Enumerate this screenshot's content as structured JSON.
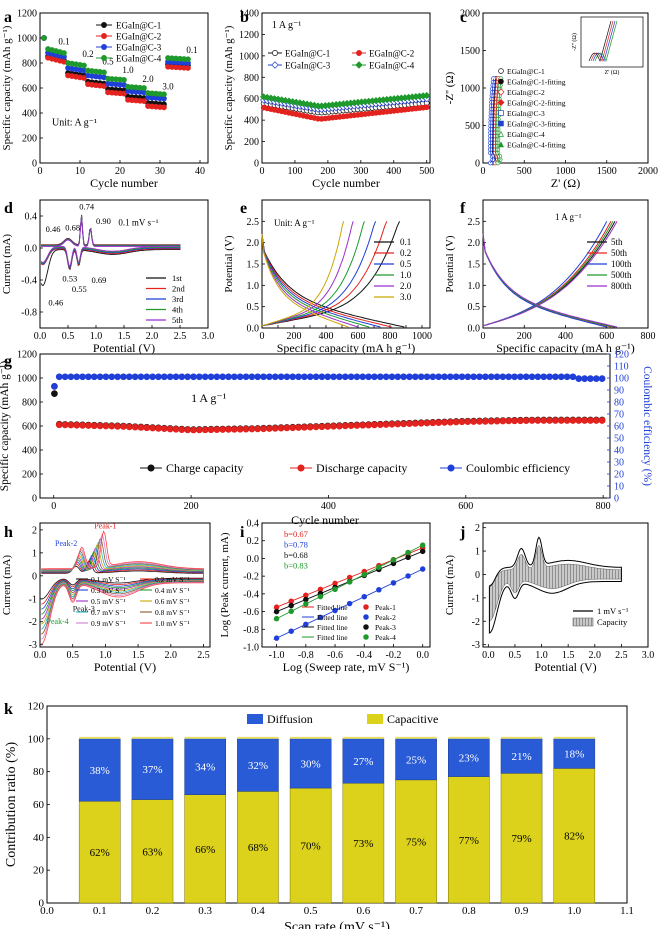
{
  "chart_data": [
    {
      "panel": "a",
      "type": "scatter",
      "xlabel": "Cycle number",
      "ylabel": "Specific capacity (mAh g⁻¹)",
      "xlim": [
        0,
        42
      ],
      "ylim": [
        0,
        1200
      ],
      "xticks": [
        0,
        10,
        20,
        30,
        40
      ],
      "yticks": [
        0,
        200,
        400,
        600,
        800,
        1000,
        1200
      ],
      "annotation": "Unit: A g⁻¹",
      "rate_labels": [
        {
          "text": "0.1",
          "x": 6,
          "y": 950
        },
        {
          "text": "0.2",
          "x": 12,
          "y": 850
        },
        {
          "text": "0.5",
          "x": 17,
          "y": 790
        },
        {
          "text": "1.0",
          "x": 22,
          "y": 720
        },
        {
          "text": "2.0",
          "x": 27,
          "y": 650
        },
        {
          "text": "3.0",
          "x": 32,
          "y": 590
        },
        {
          "text": "0.1",
          "x": 38,
          "y": 880
        }
      ],
      "series": [
        {
          "name": "EGaIn@C-1",
          "color": "#111111",
          "steps": [
            [
              860,
              820
            ],
            [
              720,
              700
            ],
            [
              650,
              635
            ],
            [
              590,
              580
            ],
            [
              530,
              520
            ],
            [
              480,
              470
            ],
            [
              790,
              780
            ]
          ]
        },
        {
          "name": "EGaIn@C-2",
          "color": "#e3231f",
          "steps": [
            [
              850,
              810
            ],
            [
              700,
              680
            ],
            [
              630,
              615
            ],
            [
              565,
              555
            ],
            [
              505,
              495
            ],
            [
              455,
              445
            ],
            [
              770,
              760
            ]
          ]
        },
        {
          "name": "EGaIn@C-3",
          "color": "#1f3fd8",
          "steps": [
            [
              890,
              850
            ],
            [
              760,
              740
            ],
            [
              700,
              685
            ],
            [
              635,
              625
            ],
            [
              575,
              565
            ],
            [
              525,
              515
            ],
            [
              810,
              800
            ]
          ]
        },
        {
          "name": "EGaIn@C-4",
          "color": "#1e9a2c",
          "steps": [
            [
              920,
              880
            ],
            [
              800,
              780
            ],
            [
              740,
              725
            ],
            [
              675,
              665
            ],
            [
              610,
              600
            ],
            [
              560,
              550
            ],
            [
              840,
              830
            ]
          ]
        }
      ]
    },
    {
      "panel": "b",
      "type": "scatter",
      "xlabel": "Cycle number",
      "ylabel": "Specific capacity (mAh g⁻¹)",
      "xlim": [
        0,
        510
      ],
      "ylim": [
        0,
        1400
      ],
      "xticks": [
        0,
        100,
        200,
        300,
        400,
        500
      ],
      "yticks": [
        0,
        200,
        400,
        600,
        800,
        1000,
        1200,
        1400
      ],
      "annotation": "1 A g⁻¹",
      "series": [
        {
          "name": "EGaIn@C-1",
          "color": "#111111",
          "start": 560,
          "min": 470,
          "end": 560
        },
        {
          "name": "EGaIn@C-2",
          "color": "#e3231f",
          "start": 520,
          "min": 410,
          "end": 520
        },
        {
          "name": "EGaIn@C-3",
          "color": "#1f3fd8",
          "start": 590,
          "min": 500,
          "end": 600
        },
        {
          "name": "EGaIn@C-4",
          "color": "#1e9a2c",
          "start": 620,
          "min": 530,
          "end": 630
        }
      ]
    },
    {
      "panel": "c",
      "type": "scatter",
      "xlabel": "Z' (Ω)",
      "ylabel": "-Z'' (Ω)",
      "xlim": [
        0,
        2000
      ],
      "ylim": [
        0,
        2000
      ],
      "xticks": [
        0,
        500,
        1000,
        1500,
        2000
      ],
      "yticks": [
        0,
        500,
        1000,
        1500,
        2000
      ],
      "inset": {
        "xlabel": "Z' (Ω)",
        "ylabel": "-Z'' (Ω)"
      },
      "legend": [
        "EGaIn@C-1",
        "EGaIn@C-1-fitting",
        "EGaIn@C-2",
        "EGaIn@C-2-fitting",
        "EGaIn@C-3",
        "EGaIn@C-3-fitting",
        "EGaIn@C-4",
        "EGaIn@C-4-fitting"
      ],
      "colors": [
        "#111111",
        "#111111",
        "#e3231f",
        "#e3231f",
        "#1f3fd8",
        "#1f3fd8",
        "#1e9a2c",
        "#1e9a2c"
      ]
    },
    {
      "panel": "d",
      "type": "line",
      "xlabel": "Potential (V)",
      "ylabel": "Current (mA)",
      "xlim": [
        0,
        3.0
      ],
      "ylim": [
        -1.0,
        0.6
      ],
      "xticks": [
        0.0,
        0.5,
        1.0,
        1.5,
        2.0,
        2.5,
        3.0
      ],
      "yticks": [
        -0.8,
        -0.4,
        0.0,
        0.4
      ],
      "annotation": "0.1 mV s⁻¹",
      "peak_labels": [
        {
          "text": "0.46",
          "x": 0.1,
          "y": 0.2
        },
        {
          "text": "0.68",
          "x": 0.45,
          "y": 0.22
        },
        {
          "text": "0.74",
          "x": 0.7,
          "y": 0.48
        },
        {
          "text": "0.90",
          "x": 1.0,
          "y": 0.3
        },
        {
          "text": "0.53",
          "x": 0.4,
          "y": -0.42
        },
        {
          "text": "0.55",
          "x": 0.57,
          "y": -0.55
        },
        {
          "text": "0.69",
          "x": 0.92,
          "y": -0.44
        },
        {
          "text": "0.46",
          "x": 0.15,
          "y": -0.72
        }
      ],
      "series": [
        {
          "name": "1st",
          "color": "#111111"
        },
        {
          "name": "2nd",
          "color": "#e3231f"
        },
        {
          "name": "3rd",
          "color": "#1f3fd8"
        },
        {
          "name": "4th",
          "color": "#1e9a2c"
        },
        {
          "name": "5th",
          "color": "#9b2fc9"
        }
      ]
    },
    {
      "panel": "e",
      "type": "line",
      "xlabel": "Specific capacity (mA h g⁻¹)",
      "ylabel": "Potential (V)",
      "xlim": [
        0,
        1050
      ],
      "ylim": [
        0,
        3.0
      ],
      "xticks": [
        0,
        100,
        200,
        300,
        400,
        500,
        600,
        700,
        800,
        900,
        1000
      ],
      "xtick_labels": [
        0,
        200,
        400,
        600,
        800,
        1000
      ],
      "yticks": [
        0.0,
        0.5,
        1.0,
        1.5,
        2.0,
        2.5
      ],
      "annotation": "Unit: A g⁻¹",
      "series": [
        {
          "name": "0.1",
          "color": "#111111",
          "cap": 890
        },
        {
          "name": "0.2",
          "color": "#e3231f",
          "cap": 810
        },
        {
          "name": "0.5",
          "color": "#1f3fd8",
          "cap": 740
        },
        {
          "name": "1.0",
          "color": "#1e9a2c",
          "cap": 670
        },
        {
          "name": "2.0",
          "color": "#9b2fc9",
          "cap": 600
        },
        {
          "name": "3.0",
          "color": "#c9a700",
          "cap": 540
        }
      ]
    },
    {
      "panel": "f",
      "type": "line",
      "xlabel": "Specific capacity (mA h g⁻¹)",
      "ylabel": "Potential (V)",
      "xlim": [
        0,
        800
      ],
      "ylim": [
        0,
        3.0
      ],
      "xticks": [
        0,
        200,
        400,
        600,
        800
      ],
      "yticks": [
        0.0,
        0.5,
        1.0,
        1.5,
        2.0,
        2.5
      ],
      "annotation": "1 A g⁻¹",
      "series": [
        {
          "name": "5th",
          "color": "#111111",
          "cap": 640
        },
        {
          "name": "50th",
          "color": "#e3231f",
          "cap": 620
        },
        {
          "name": "100th",
          "color": "#1f3fd8",
          "cap": 600
        },
        {
          "name": "500th",
          "color": "#1e9a2c",
          "cap": 630
        },
        {
          "name": "800th",
          "color": "#9b2fc9",
          "cap": 650
        }
      ]
    },
    {
      "panel": "g",
      "type": "scatter",
      "xlabel": "Cycle number",
      "ylabel": "Specific capacity (mAh g⁻¹)",
      "ylabel2": "Coulombic efficiency (%)",
      "xlim": [
        -20,
        810
      ],
      "ylim": [
        0,
        1200
      ],
      "ylim2": [
        0,
        120
      ],
      "xticks": [
        0,
        200,
        400,
        600,
        800
      ],
      "yticks": [
        0,
        200,
        400,
        600,
        800,
        1000,
        1200
      ],
      "yticks2": [
        0,
        10,
        20,
        30,
        40,
        50,
        60,
        70,
        80,
        90,
        100,
        110,
        120
      ],
      "annotation": "1 A g⁻¹",
      "series": [
        {
          "name": "Charge capacity",
          "color": "#111111"
        },
        {
          "name": "Discharge capacity",
          "color": "#e3231f"
        },
        {
          "name": "Coulombic efficiency",
          "color": "#1f3fd8"
        }
      ],
      "first_charge": 870,
      "first_discharge": 930,
      "first_ce": 93,
      "capacity_profile": [
        [
          5,
          615
        ],
        [
          100,
          600
        ],
        [
          200,
          570
        ],
        [
          300,
          580
        ],
        [
          400,
          600
        ],
        [
          500,
          620
        ],
        [
          600,
          640
        ],
        [
          700,
          650
        ],
        [
          800,
          650
        ]
      ],
      "ce_value": 101
    },
    {
      "panel": "h",
      "type": "line",
      "xlabel": "Potential (V)",
      "ylabel": "Current (mA)",
      "xlim": [
        0,
        2.6
      ],
      "ylim": [
        -3.1,
        2.3
      ],
      "xticks": [
        0.0,
        0.5,
        1.0,
        1.5,
        2.0,
        2.5
      ],
      "yticks": [
        -3,
        -2,
        -1,
        0,
        1,
        2
      ],
      "peak_labels": [
        "Peak-1",
        "Peak-2",
        "Peak-3",
        "Peak-4"
      ],
      "series": [
        {
          "name": "0.1 mV S⁻¹",
          "color": "#111111"
        },
        {
          "name": "0.2 mV S⁻¹",
          "color": "#e3231f"
        },
        {
          "name": "0.3 mV S⁻¹",
          "color": "#1f3fd8"
        },
        {
          "name": "0.4 mV S⁻¹",
          "color": "#1e9a2c"
        },
        {
          "name": "0.5 mV S⁻¹",
          "color": "#9b2fc9"
        },
        {
          "name": "0.6 mV S⁻¹",
          "color": "#c9a700"
        },
        {
          "name": "0.7 mV S⁻¹",
          "color": "#1fb6c7"
        },
        {
          "name": "0.8 mV S⁻¹",
          "color": "#8a5a2b"
        },
        {
          "name": "0.9 mV S⁻¹",
          "color": "#d07fd0"
        },
        {
          "name": "1.0 mV S⁻¹",
          "color": "#ff4040"
        }
      ]
    },
    {
      "panel": "i",
      "type": "scatter",
      "xlabel": "Log (Sweep rate, mV S⁻¹)",
      "ylabel": "Log (Peak current, mA)",
      "xlim": [
        -1.1,
        0.05
      ],
      "ylim": [
        -1.0,
        0.4
      ],
      "xticks": [
        -1.0,
        -0.8,
        -0.6,
        -0.4,
        -0.2,
        0.0
      ],
      "yticks": [
        -1.0,
        -0.8,
        -0.6,
        -0.4,
        -0.2,
        0.0,
        0.2,
        0.4
      ],
      "b_values": [
        {
          "text": "b=0.67",
          "color": "#e3231f"
        },
        {
          "text": "b=0.78",
          "color": "#1f3fd8"
        },
        {
          "text": "b=0.68",
          "color": "#111111"
        },
        {
          "text": "b=0.83",
          "color": "#1e9a2c"
        }
      ],
      "legend": [
        {
          "name": "Fitted line",
          "color": "#e3231f"
        },
        {
          "name": "Peak-1",
          "color": "#e3231f"
        },
        {
          "name": "Fitted line",
          "color": "#1f3fd8"
        },
        {
          "name": "Peak-2",
          "color": "#1f3fd8"
        },
        {
          "name": "Fitted line",
          "color": "#111111"
        },
        {
          "name": "Peak-3",
          "color": "#111111"
        },
        {
          "name": "Fitted line",
          "color": "#1e9a2c"
        },
        {
          "name": "Peak-4",
          "color": "#1e9a2c"
        }
      ],
      "series": [
        {
          "name": "Peak-1",
          "color": "#e3231f",
          "y0": -0.55,
          "slope": 0.67
        },
        {
          "name": "Peak-2",
          "color": "#1f3fd8",
          "y0": -0.9,
          "slope": 0.78
        },
        {
          "name": "Peak-3",
          "color": "#111111",
          "y0": -0.6,
          "slope": 0.68
        },
        {
          "name": "Peak-4",
          "color": "#1e9a2c",
          "y0": -0.68,
          "slope": 0.83
        }
      ]
    },
    {
      "panel": "j",
      "type": "area",
      "xlabel": "Potential (V)",
      "ylabel": "Current (mA)",
      "xlim": [
        -0.1,
        3.0
      ],
      "ylim": [
        -3.1,
        2.2
      ],
      "xticks": [
        0.0,
        0.5,
        1.0,
        1.5,
        2.0,
        2.5,
        3.0
      ],
      "yticks": [
        -3,
        -2,
        -1,
        0,
        1,
        2
      ],
      "legend": [
        "1 mV s⁻¹",
        "Capacity"
      ]
    },
    {
      "panel": "k",
      "type": "bar",
      "xlabel": "Scan rate (mV s⁻¹)",
      "ylabel": "Contribution ratio (%)",
      "xlim": [
        0,
        1.1
      ],
      "ylim": [
        0,
        120
      ],
      "xticks": [
        0.0,
        0.1,
        0.2,
        0.3,
        0.4,
        0.5,
        0.6,
        0.7,
        0.8,
        0.9,
        1.0,
        1.1
      ],
      "yticks": [
        0,
        20,
        40,
        60,
        80,
        100,
        120
      ],
      "categories": [
        0.1,
        0.2,
        0.3,
        0.4,
        0.5,
        0.6,
        0.7,
        0.8,
        0.9,
        1.0
      ],
      "series": [
        {
          "name": "Capacitive",
          "color": "#dcd21c",
          "values": [
            62,
            63,
            66,
            68,
            70,
            73,
            75,
            77,
            79,
            82
          ]
        },
        {
          "name": "Diffusion",
          "color": "#2a5bd7",
          "values": [
            38,
            37,
            34,
            32,
            30,
            27,
            25,
            23,
            21,
            18
          ]
        }
      ]
    }
  ]
}
